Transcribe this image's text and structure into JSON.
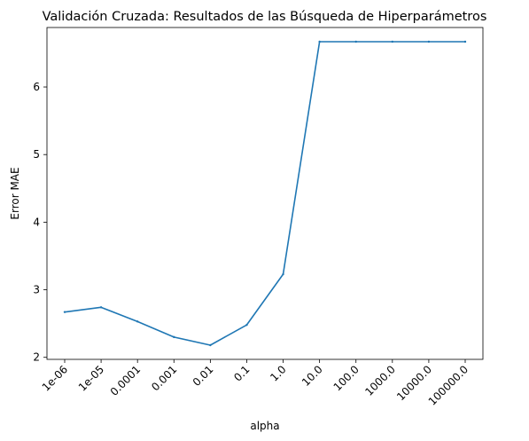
{
  "chart_data": {
    "type": "line",
    "title": "Validación Cruzada: Resultados de las Búsqueda de Hiperparámetros",
    "xlabel": "alpha",
    "ylabel": "Error MAE",
    "categories": [
      "1e-06",
      "1e-05",
      "0.0001",
      "0.001",
      "0.01",
      "0.1",
      "1.0",
      "10.0",
      "100.0",
      "1000.0",
      "10000.0",
      "100000.0"
    ],
    "series": [
      {
        "values": [
          2.67,
          2.74,
          2.53,
          2.3,
          2.18,
          2.48,
          3.23,
          6.67,
          6.67,
          6.67,
          6.67,
          6.67
        ]
      }
    ],
    "ylim": [
      1.97,
      6.88
    ],
    "yticks": [
      2,
      3,
      4,
      5,
      6
    ],
    "grid": false,
    "line_color": "#1f77b4"
  }
}
